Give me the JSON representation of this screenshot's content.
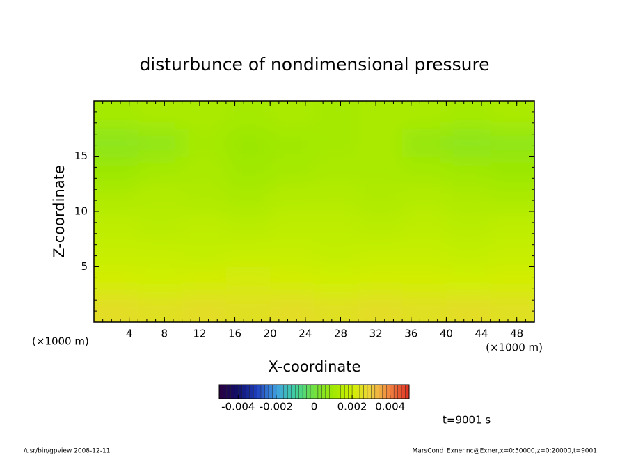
{
  "chart_data": {
    "type": "heatmap",
    "title": "disturbunce of nondimensional pressure",
    "xlabel": "X-coordinate",
    "ylabel": "Z-coordinate",
    "x_unit": "(×1000 m)",
    "y_unit": "(×1000 m)",
    "xlim": [
      0,
      50
    ],
    "ylim": [
      0,
      20
    ],
    "xticks": [
      4,
      8,
      12,
      16,
      20,
      24,
      28,
      32,
      36,
      40,
      44,
      48
    ],
    "yticks": [
      5,
      10,
      15
    ],
    "field": {
      "x": [
        2.5,
        7.5,
        12.5,
        17.5,
        22.5,
        27.5,
        32.5,
        37.5,
        42.5,
        47.5
      ],
      "z": [
        1.25,
        3.75,
        6.25,
        8.75,
        11.25,
        13.75,
        16.25,
        18.75
      ],
      "values": [
        [
          0.0026,
          0.0025,
          0.0026,
          0.0025,
          0.0026,
          0.0025,
          0.0026,
          0.0025,
          0.0026,
          0.0025
        ],
        [
          0.0021,
          0.002,
          0.0021,
          0.0022,
          0.0021,
          0.002,
          0.0021,
          0.0021,
          0.002,
          0.0021
        ],
        [
          0.0018,
          0.0018,
          0.0017,
          0.0018,
          0.0018,
          0.0017,
          0.0018,
          0.0018,
          0.0017,
          0.0018
        ],
        [
          0.0016,
          0.0015,
          0.0016,
          0.0015,
          0.0016,
          0.0016,
          0.0015,
          0.0016,
          0.0015,
          0.0016
        ],
        [
          0.0013,
          0.0014,
          0.0013,
          0.0012,
          0.0014,
          0.0014,
          0.0013,
          0.0014,
          0.0013,
          0.0012
        ],
        [
          0.0009,
          0.0011,
          0.0012,
          0.001,
          0.0011,
          0.0012,
          0.0012,
          0.0011,
          0.001,
          0.0009
        ],
        [
          0.0006,
          0.0007,
          0.0011,
          0.0009,
          0.001,
          0.0011,
          0.0012,
          0.0008,
          0.0006,
          0.0007
        ],
        [
          0.0011,
          0.0012,
          0.0012,
          0.0011,
          0.0012,
          0.0011,
          0.0012,
          0.0012,
          0.0011,
          0.0012
        ]
      ]
    },
    "colorbar_lim": [
      -0.005,
      0.005
    ],
    "colorbar_ticks": [
      -0.004,
      -0.002,
      0,
      0.002,
      0.004
    ],
    "colormap": [
      "#2a0040",
      "#10106a",
      "#2040c0",
      "#40a0e0",
      "#40d0a0",
      "#70e040",
      "#a0e800",
      "#d0f000",
      "#f0d040",
      "#f08040",
      "#e03020"
    ],
    "time_label": "t=9001 s",
    "footer_left": "/usr/bin/gpview   2008-12-11",
    "footer_right": "MarsCond_Exner.nc@Exner,x=0:50000,z=0:20000,t=9001"
  }
}
